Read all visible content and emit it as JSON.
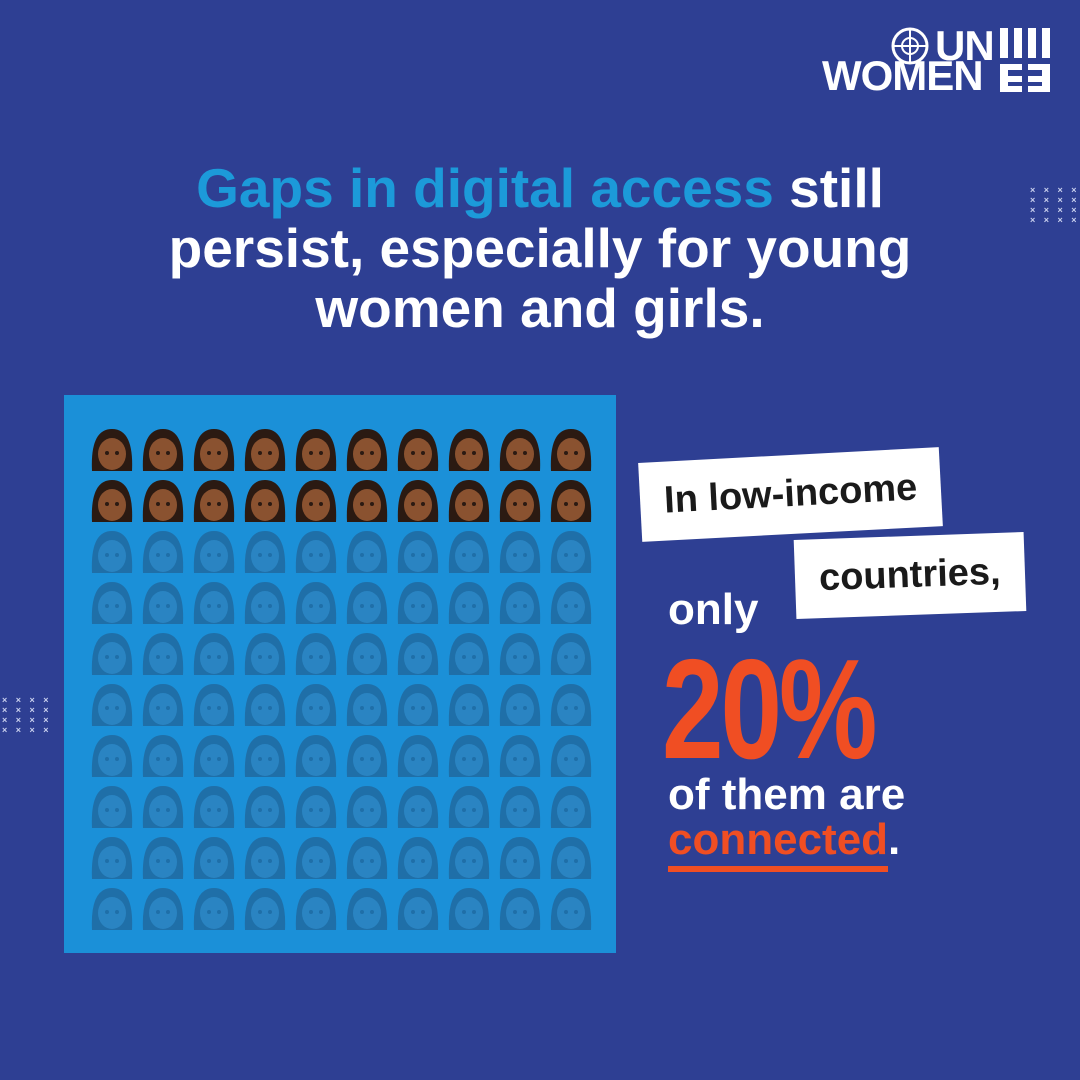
{
  "logo": {
    "line1": "UN",
    "line2": "WOMEN"
  },
  "headline": {
    "highlight": "Gaps in digital access",
    "rest": "still persist, especially for young women and girls."
  },
  "chart_data": {
    "type": "waffle",
    "total": 100,
    "values": [
      20
    ],
    "value_labels": [
      "20%"
    ],
    "highlight_colors": {
      "face": "#8a5230",
      "hair": "#2b1a12"
    },
    "rest_colors": {
      "face": "#2a84c2",
      "hair": "#1f6fa8"
    }
  },
  "callout": {
    "line1": "In low-income",
    "line2": "countries,",
    "line3": "only",
    "line4": "of them are",
    "emphasis": "connected",
    "end": "."
  }
}
